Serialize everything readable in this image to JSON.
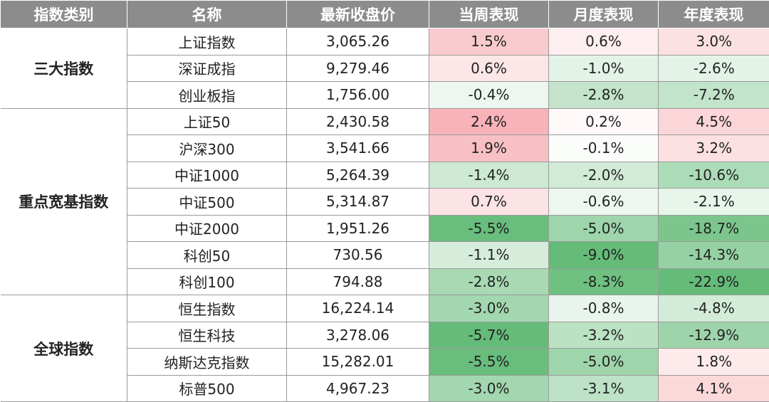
{
  "chart_data": {
    "type": "table",
    "columns": [
      "指数类别",
      "名称",
      "最新收盘价",
      "当周表现",
      "月度表现",
      "年度表现"
    ],
    "colors": {
      "header_bg": "#8c8c8c",
      "positive": "#f0606a",
      "negative": "#5db872"
    },
    "groups": [
      {
        "category": "三大指数",
        "rows": [
          {
            "name": "上证指数",
            "close": "3,065.26",
            "week": "1.5%",
            "month": "0.6%",
            "year": "3.0%"
          },
          {
            "name": "深证成指",
            "close": "9,279.46",
            "week": "0.6%",
            "month": "-1.0%",
            "year": "-2.6%"
          },
          {
            "name": "创业板指",
            "close": "1,756.00",
            "week": "-0.4%",
            "month": "-2.8%",
            "year": "-7.2%"
          }
        ]
      },
      {
        "category": "重点宽基指数",
        "rows": [
          {
            "name": "上证50",
            "close": "2,430.58",
            "week": "2.4%",
            "month": "0.2%",
            "year": "4.5%"
          },
          {
            "name": "沪深300",
            "close": "3,541.66",
            "week": "1.9%",
            "month": "-0.1%",
            "year": "3.2%"
          },
          {
            "name": "中证1000",
            "close": "5,264.39",
            "week": "-1.4%",
            "month": "-2.0%",
            "year": "-10.6%"
          },
          {
            "name": "中证500",
            "close": "5,314.87",
            "week": "0.7%",
            "month": "-0.6%",
            "year": "-2.1%"
          },
          {
            "name": "中证2000",
            "close": "1,951.26",
            "week": "-5.5%",
            "month": "-5.0%",
            "year": "-18.7%"
          },
          {
            "name": "科创50",
            "close": "730.56",
            "week": "-1.1%",
            "month": "-9.0%",
            "year": "-14.3%"
          },
          {
            "name": "科创100",
            "close": "794.88",
            "week": "-2.8%",
            "month": "-8.3%",
            "year": "-22.9%"
          }
        ]
      },
      {
        "category": "全球指数",
        "rows": [
          {
            "name": "恒生指数",
            "close": "16,224.14",
            "week": "-3.0%",
            "month": "-0.8%",
            "year": "-4.8%"
          },
          {
            "name": "恒生科技",
            "close": "3,278.06",
            "week": "-5.7%",
            "month": "-3.2%",
            "year": "-12.9%"
          },
          {
            "name": "纳斯达克指数",
            "close": "15,282.01",
            "week": "-5.5%",
            "month": "-5.0%",
            "year": "1.8%"
          },
          {
            "name": "标普500",
            "close": "4,967.23",
            "week": "-3.0%",
            "month": "-3.1%",
            "year": "4.1%"
          }
        ]
      }
    ]
  }
}
